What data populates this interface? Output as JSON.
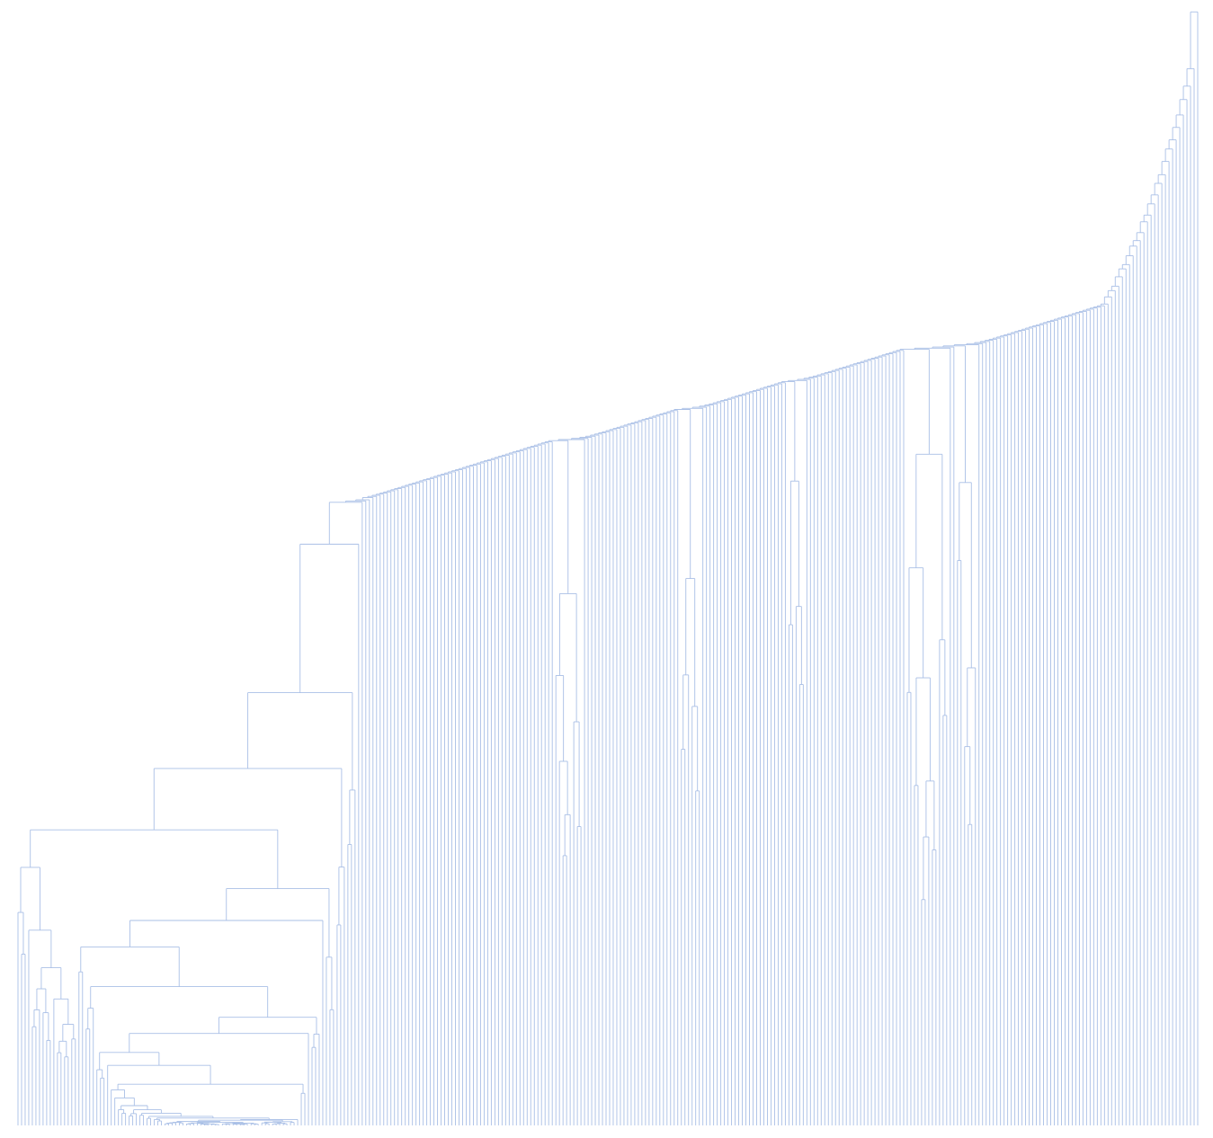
{
  "chart_data": {
    "type": "dendrogram",
    "orientation": "vertical",
    "leaf_count": 330,
    "leaf_labels_shown": false,
    "axis_shown": false,
    "grid": false,
    "link_color": "#a9bfe6",
    "background": "#ffffff",
    "structure": "caterpillar",
    "trunk_heights": [
      0.96,
      0.91,
      0.86,
      0.81,
      0.76,
      0.73,
      0.71,
      0.68,
      0.64,
      0.6,
      0.57,
      0.545,
      0.52,
      0.5,
      0.485,
      0.465,
      0.445,
      0.425,
      0.405,
      0.39,
      0.375,
      0.36,
      0.345,
      0.335,
      0.325,
      0.315,
      0.305,
      0.296,
      0.288,
      0.281,
      0.275,
      0.269,
      0.263,
      0.258,
      0.253,
      0.248,
      0.244,
      0.24,
      0.236,
      0.232,
      0.229,
      0.226,
      0.223,
      0.22,
      0.217,
      0.214,
      0.211,
      0.208,
      0.205,
      0.202,
      0.199,
      0.196,
      0.193,
      0.19,
      0.187,
      0.184,
      0.181,
      0.178,
      0.175,
      0.172,
      0.169,
      0.166,
      0.163,
      0.16,
      0.157,
      0.154,
      0.151,
      0.148,
      0.145,
      0.142,
      0.139,
      0.136,
      0.133,
      0.13,
      0.127,
      0.124,
      0.121,
      0.118,
      0.115,
      0.112,
      0.109,
      0.106,
      0.103,
      0.1,
      0.097,
      0.094,
      0.091,
      0.088,
      0.085,
      0.082,
      0.079,
      0.076,
      0.073,
      0.07,
      0.067,
      0.064,
      0.061,
      0.058,
      0.055,
      0.052,
      0.049,
      0.046,
      0.043,
      0.04
    ],
    "left_cluster_height": 0.57,
    "min_merge_height": 0.0
  }
}
